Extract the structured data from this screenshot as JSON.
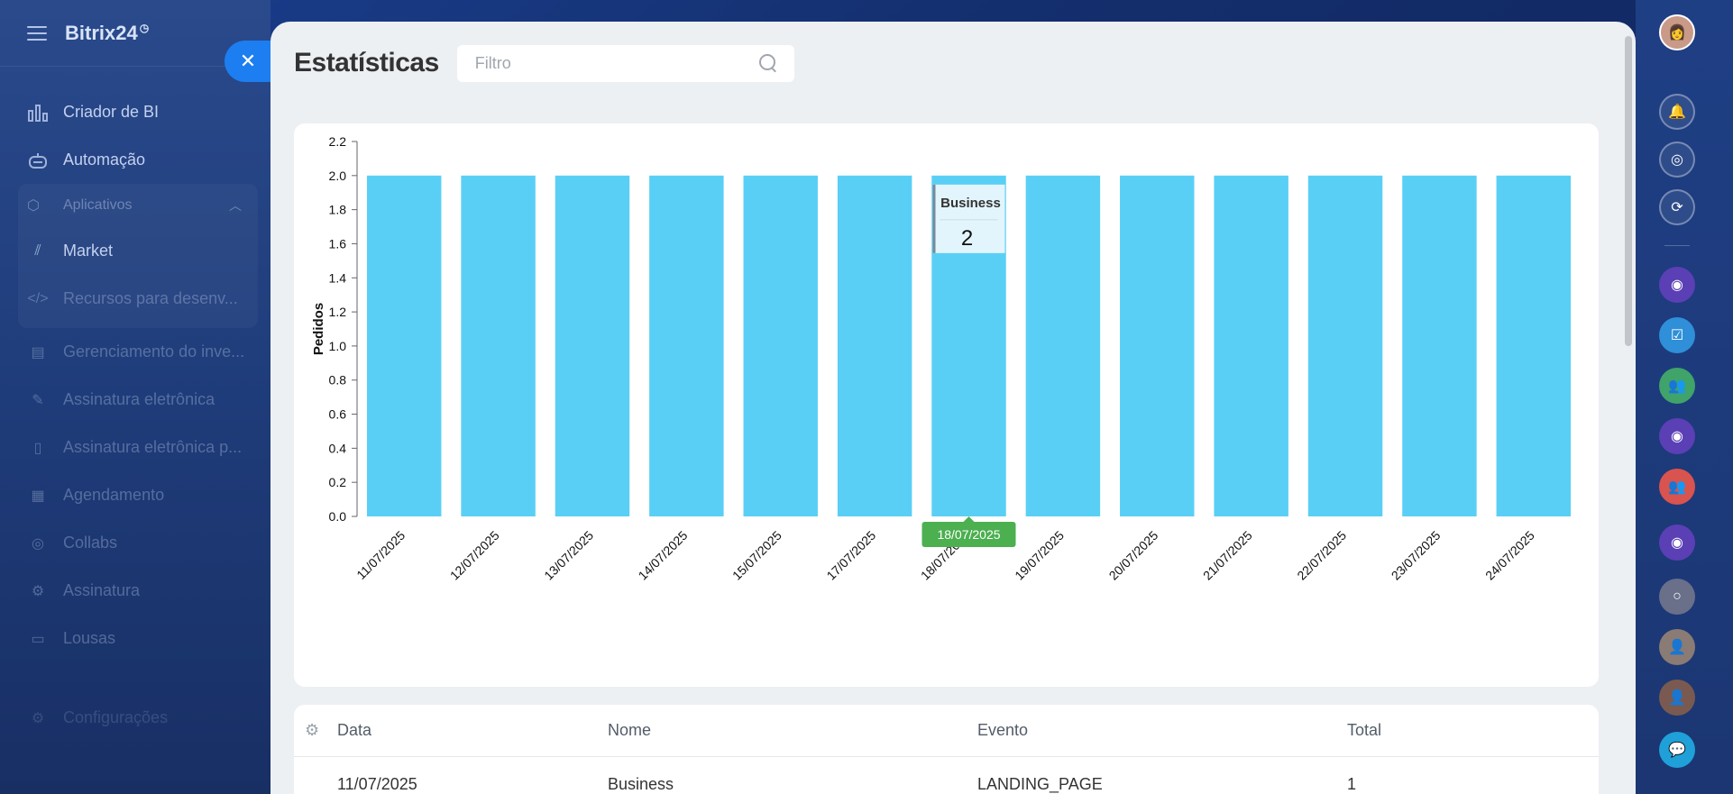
{
  "sidebar": {
    "brand": "Bitrix24",
    "items": [
      {
        "label": "Criador de BI",
        "icon": "bar-chart-icon"
      },
      {
        "label": "Automação",
        "icon": "robot-icon"
      }
    ],
    "group": {
      "label": "Aplicativos",
      "items": [
        {
          "label": "Market",
          "icon": "market-icon"
        },
        {
          "label": "Recursos para desenv...",
          "icon": "code-icon"
        }
      ]
    },
    "more_items": [
      {
        "label": "Gerenciamento do inve...",
        "icon": "inventory-icon"
      },
      {
        "label": "Assinatura eletrônica",
        "icon": "signature-icon"
      },
      {
        "label": "Assinatura eletrônica p...",
        "icon": "document-sign-icon"
      },
      {
        "label": "Agendamento",
        "icon": "calendar-icon"
      },
      {
        "label": "Collabs",
        "icon": "collabs-icon"
      },
      {
        "label": "Assinatura",
        "icon": "subscription-icon"
      },
      {
        "label": "Lousas",
        "icon": "board-icon"
      }
    ],
    "settings_label": "Configurações"
  },
  "panel": {
    "title": "Estatísticas",
    "filter_placeholder": "Filtro"
  },
  "chart_data": {
    "type": "bar",
    "categories": [
      "11/07/2025",
      "12/07/2025",
      "13/07/2025",
      "14/07/2025",
      "15/07/2025",
      "17/07/2025",
      "18/07/2025",
      "19/07/2025",
      "20/07/2025",
      "21/07/2025",
      "22/07/2025",
      "23/07/2025",
      "24/07/2025"
    ],
    "series": [
      {
        "name": "Business",
        "values": [
          2,
          2,
          2,
          2,
          2,
          2,
          2,
          2,
          2,
          2,
          2,
          2,
          2
        ]
      }
    ],
    "ylabel": "Pedidos",
    "ylim": [
      0,
      2.2
    ],
    "yticks": [
      "0.0",
      "0.2",
      "0.4",
      "0.6",
      "0.8",
      "1.0",
      "1.2",
      "1.4",
      "1.6",
      "1.8",
      "2.0",
      "2.2"
    ],
    "bar_color": "#5acff5",
    "tooltip": {
      "series": "Business",
      "value": "2",
      "category": "18/07/2025"
    },
    "grid": false,
    "legend": "none"
  },
  "table": {
    "headers": {
      "data": "Data",
      "nome": "Nome",
      "evento": "Evento",
      "total": "Total"
    },
    "rows": [
      {
        "data": "11/07/2025",
        "nome": "Business",
        "evento": "LANDING_PAGE",
        "total": "1"
      }
    ]
  },
  "colors": {
    "accent": "#1c7ef0",
    "bar": "#5acff5",
    "tooltip_category_bg": "#4caf50"
  }
}
